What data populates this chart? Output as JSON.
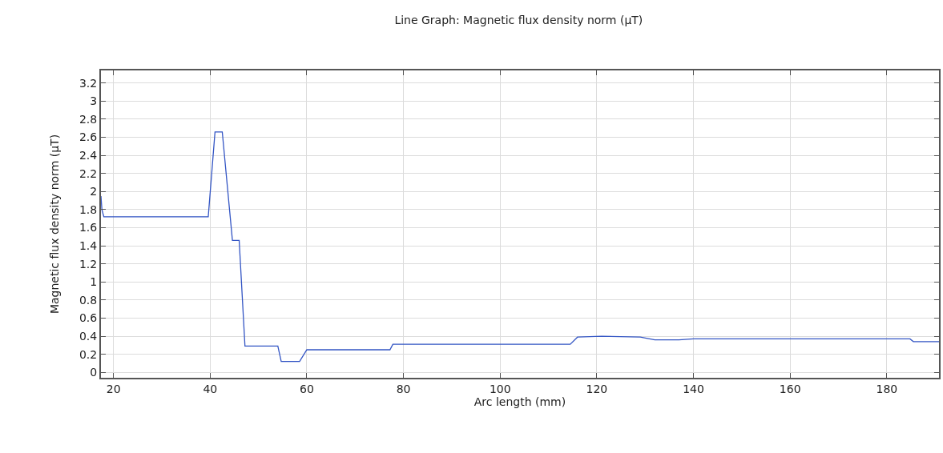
{
  "chart_data": {
    "type": "line",
    "title": "Line Graph: Magnetic flux density norm (µT)",
    "xlabel": "Arc length (mm)",
    "ylabel": "Magnetic flux density norm (µT)",
    "series": [
      {
        "color": "#3355c4",
        "x": [
          17.4,
          17.6,
          18.0,
          39.6,
          41.0,
          42.5,
          44.6,
          46.0,
          47.2,
          54.0,
          54.7,
          58.5,
          60.0,
          77.2,
          77.8,
          114.5,
          116.0,
          121.0,
          129.0,
          132.0,
          137.0,
          140.0,
          184.8,
          185.5,
          190.8
        ],
        "values": [
          1.95,
          1.8,
          1.72,
          1.72,
          2.66,
          2.66,
          1.46,
          1.46,
          0.29,
          0.29,
          0.12,
          0.12,
          0.25,
          0.25,
          0.31,
          0.31,
          0.39,
          0.4,
          0.39,
          0.36,
          0.36,
          0.37,
          0.37,
          0.34,
          0.34
        ]
      }
    ],
    "xlim": [
      17.4,
      190.8
    ],
    "xticks": [
      20,
      40,
      60,
      80,
      100,
      120,
      140,
      160,
      180
    ],
    "ylim": [
      -0.06,
      3.34
    ],
    "yticks": [
      0,
      0.2,
      0.4,
      0.6,
      0.8,
      1,
      1.2,
      1.4,
      1.6,
      1.8,
      2,
      2.2,
      2.4,
      2.6,
      2.8,
      3,
      3.2
    ],
    "grid": true,
    "marker": "none",
    "line_style": "solid"
  }
}
